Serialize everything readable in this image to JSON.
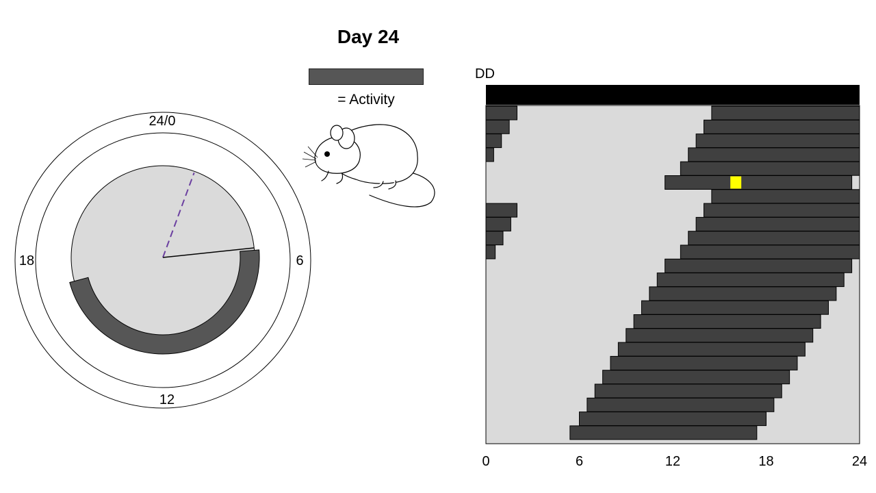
{
  "title": "Day 24",
  "legend": {
    "label": "= Activity",
    "swatch_color": "#565656"
  },
  "condition_label": "DD",
  "clock": {
    "labels": {
      "top": "24/0",
      "right": "6",
      "bottom": "12",
      "left": "18"
    },
    "hour_hand_hours": 5.6,
    "reference_hours": 1.35,
    "activity_arc": {
      "start_hours": 5.7,
      "end_hours": 17.0
    },
    "colors": {
      "face": "#dadada",
      "activity": "#565656",
      "reference": "#6b3fa0"
    }
  },
  "actogram": {
    "x_ticks": [
      "0",
      "6",
      "12",
      "18",
      "24"
    ],
    "x_range": [
      0,
      24
    ],
    "light_bar_color": "#000000",
    "background_color": "#dadada",
    "activity_color": "#404040",
    "marker_color": "#ffff00",
    "marker": {
      "row": 5,
      "hours": 15.7
    },
    "rows": [
      [
        [
          0,
          2.0
        ],
        [
          14.5,
          24
        ]
      ],
      [
        [
          0,
          1.5
        ],
        [
          14.0,
          24
        ]
      ],
      [
        [
          0,
          1.0
        ],
        [
          13.5,
          24
        ]
      ],
      [
        [
          0,
          0.5
        ],
        [
          13.0,
          24
        ]
      ],
      [
        [
          12.5,
          24
        ]
      ],
      [
        [
          11.5,
          23.5
        ]
      ],
      [
        [
          14.5,
          24
        ]
      ],
      [
        [
          0,
          2.0
        ],
        [
          14.0,
          24
        ]
      ],
      [
        [
          0,
          1.6
        ],
        [
          13.5,
          24
        ]
      ],
      [
        [
          0,
          1.1
        ],
        [
          13.0,
          24
        ]
      ],
      [
        [
          0,
          0.6
        ],
        [
          12.5,
          24
        ]
      ],
      [
        [
          11.5,
          23.5
        ]
      ],
      [
        [
          11.0,
          23.0
        ]
      ],
      [
        [
          10.5,
          22.5
        ]
      ],
      [
        [
          10.0,
          22.0
        ]
      ],
      [
        [
          9.5,
          21.5
        ]
      ],
      [
        [
          9.0,
          21.0
        ]
      ],
      [
        [
          8.5,
          20.5
        ]
      ],
      [
        [
          8.0,
          20.0
        ]
      ],
      [
        [
          7.5,
          19.5
        ]
      ],
      [
        [
          7.0,
          19.0
        ]
      ],
      [
        [
          6.5,
          18.5
        ]
      ],
      [
        [
          6.0,
          18.0
        ]
      ],
      [
        [
          5.4,
          17.4
        ]
      ]
    ]
  }
}
